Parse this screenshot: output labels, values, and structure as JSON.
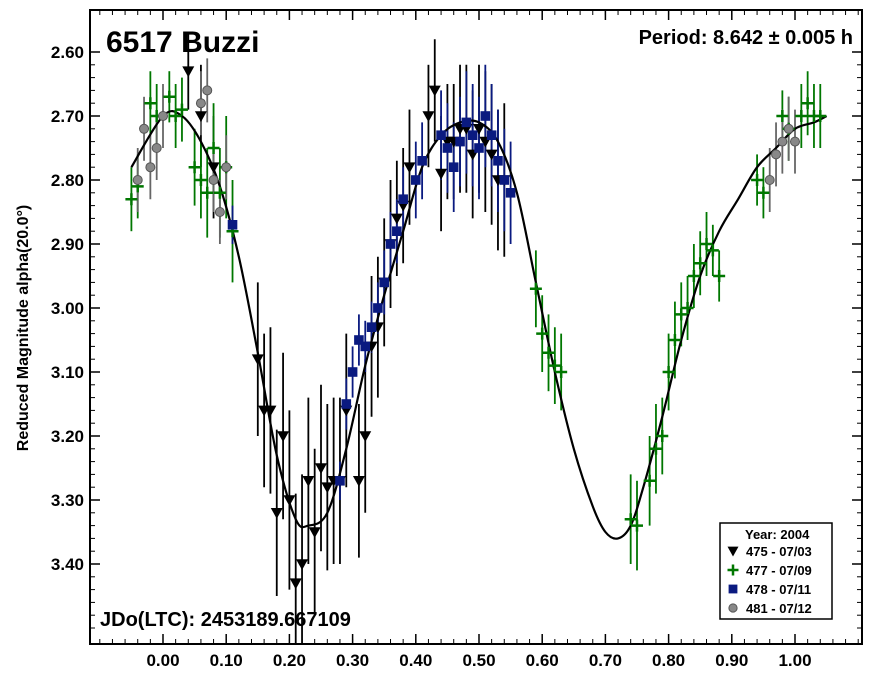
{
  "chart_data": {
    "type": "scatter",
    "title": "6517 Buzzi",
    "period_text": "Period: 8.642 ± 0.005 h",
    "jd_text": "JDo(LTC): 2453189.667109",
    "ylabel": "Reduced Magnitude alpha(20.0°)",
    "xlabel": "",
    "xlim": [
      -0.12,
      1.12
    ],
    "ylim": [
      3.5,
      2.58
    ],
    "y_inverted": true,
    "grid": false,
    "x_ticks": [
      "0.00",
      "0.10",
      "0.20",
      "0.30",
      "0.40",
      "0.50",
      "0.60",
      "0.70",
      "0.80",
      "0.90",
      "1.00"
    ],
    "y_ticks": [
      "2.60",
      "2.70",
      "2.80",
      "2.90",
      "3.00",
      "3.10",
      "3.20",
      "3.30",
      "3.40"
    ],
    "legend": {
      "title": "Year: 2004",
      "placement": "bottom-right",
      "entries": [
        {
          "label": "475 - 07/03",
          "marker": "triangle-down",
          "color": "#000000"
        },
        {
          "label": "477 - 07/09",
          "marker": "plus",
          "color": "#007700"
        },
        {
          "label": "478 - 07/11",
          "marker": "square",
          "color": "#0a1a80"
        },
        {
          "label": "481 - 07/12",
          "marker": "circle",
          "color": "#888888"
        }
      ]
    },
    "fit_curve": {
      "x": [
        -0.05,
        0.0,
        0.03,
        0.06,
        0.09,
        0.12,
        0.15,
        0.18,
        0.21,
        0.23,
        0.26,
        0.29,
        0.32,
        0.35,
        0.38,
        0.41,
        0.44,
        0.47,
        0.5,
        0.53,
        0.56,
        0.59,
        0.62,
        0.65,
        0.68,
        0.7,
        0.72,
        0.74,
        0.76,
        0.79,
        0.82,
        0.85,
        0.88,
        0.91,
        0.94,
        0.97,
        1.0,
        1.03,
        1.05
      ],
      "y": [
        2.78,
        2.7,
        2.7,
        2.74,
        2.81,
        2.92,
        3.07,
        3.23,
        3.33,
        3.34,
        3.32,
        3.22,
        3.09,
        2.98,
        2.88,
        2.78,
        2.73,
        2.71,
        2.71,
        2.74,
        2.82,
        2.96,
        3.1,
        3.22,
        3.31,
        3.35,
        3.36,
        3.34,
        3.28,
        3.17,
        3.05,
        2.95,
        2.88,
        2.83,
        2.78,
        2.75,
        2.72,
        2.71,
        2.7
      ]
    },
    "series": [
      {
        "name": "475 - 07/03",
        "marker": "triangle-down",
        "color": "#000000",
        "x": [
          0.04,
          0.06,
          0.08,
          0.15,
          0.16,
          0.17,
          0.18,
          0.19,
          0.2,
          0.21,
          0.22,
          0.23,
          0.24,
          0.25,
          0.26,
          0.27,
          0.28,
          0.29,
          0.31,
          0.32,
          0.33,
          0.34,
          0.35,
          0.36,
          0.37,
          0.38,
          0.39,
          0.42,
          0.43,
          0.44,
          0.45,
          0.46,
          0.47,
          0.48,
          0.49,
          0.5,
          0.51,
          0.52,
          0.53,
          0.54
        ],
        "y": [
          2.63,
          2.7,
          2.78,
          3.08,
          3.16,
          3.16,
          3.32,
          3.2,
          3.3,
          3.43,
          3.4,
          3.27,
          3.35,
          3.25,
          3.28,
          3.27,
          3.27,
          3.16,
          3.27,
          3.2,
          3.06,
          3.03,
          2.96,
          2.9,
          2.86,
          2.84,
          2.78,
          2.7,
          2.66,
          2.79,
          2.74,
          2.74,
          2.72,
          2.72,
          2.76,
          2.72,
          2.74,
          2.76,
          2.8,
          2.8
        ],
        "err": [
          0.06,
          0.08,
          0.08,
          0.12,
          0.12,
          0.13,
          0.13,
          0.13,
          0.14,
          0.14,
          0.14,
          0.13,
          0.13,
          0.13,
          0.13,
          0.13,
          0.13,
          0.12,
          0.12,
          0.12,
          0.11,
          0.11,
          0.1,
          0.1,
          0.09,
          0.09,
          0.09,
          0.08,
          0.08,
          0.09,
          0.09,
          0.09,
          0.1,
          0.1,
          0.1,
          0.1,
          0.11,
          0.11,
          0.11,
          0.12
        ]
      },
      {
        "name": "477 - 07/09",
        "marker": "plus",
        "color": "#007700",
        "x": [
          -0.05,
          -0.04,
          -0.02,
          -0.01,
          0.01,
          0.02,
          0.03,
          0.05,
          0.06,
          0.07,
          0.08,
          0.09,
          0.1,
          0.11,
          0.59,
          0.6,
          0.61,
          0.62,
          0.63,
          0.74,
          0.75,
          0.77,
          0.78,
          0.79,
          0.8,
          0.81,
          0.82,
          0.83,
          0.84,
          0.85,
          0.86,
          0.87,
          0.88,
          0.94,
          0.95,
          0.98,
          0.99,
          1.01,
          1.02,
          1.03,
          1.04
        ],
        "y": [
          2.83,
          2.81,
          2.68,
          2.7,
          2.67,
          2.7,
          2.69,
          2.78,
          2.8,
          2.82,
          2.75,
          2.82,
          2.78,
          2.88,
          2.97,
          3.04,
          3.07,
          3.09,
          3.1,
          3.33,
          3.34,
          3.27,
          3.22,
          3.2,
          3.1,
          3.05,
          3.01,
          3.0,
          2.95,
          2.93,
          2.9,
          2.91,
          2.95,
          2.8,
          2.82,
          2.7,
          2.72,
          2.7,
          2.68,
          2.7,
          2.7
        ],
        "err": [
          0.05,
          0.05,
          0.05,
          0.05,
          0.04,
          0.05,
          0.05,
          0.06,
          0.06,
          0.07,
          0.07,
          0.07,
          0.08,
          0.08,
          0.06,
          0.06,
          0.06,
          0.06,
          0.06,
          0.07,
          0.07,
          0.07,
          0.07,
          0.06,
          0.06,
          0.06,
          0.05,
          0.05,
          0.05,
          0.05,
          0.05,
          0.04,
          0.04,
          0.04,
          0.04,
          0.04,
          0.05,
          0.05,
          0.05,
          0.05,
          0.05
        ]
      },
      {
        "name": "478 - 07/11",
        "marker": "square",
        "color": "#0a1a80",
        "x": [
          0.11,
          0.28,
          0.29,
          0.3,
          0.31,
          0.32,
          0.33,
          0.34,
          0.35,
          0.36,
          0.37,
          0.38,
          0.4,
          0.41,
          0.44,
          0.45,
          0.46,
          0.47,
          0.48,
          0.49,
          0.5,
          0.51,
          0.52,
          0.53,
          0.54,
          0.55
        ],
        "y": [
          2.87,
          3.27,
          3.15,
          3.1,
          3.05,
          3.06,
          3.03,
          3.0,
          2.96,
          2.9,
          2.88,
          2.83,
          2.8,
          2.77,
          2.73,
          2.75,
          2.78,
          2.74,
          2.71,
          2.73,
          2.75,
          2.7,
          2.73,
          2.77,
          2.8,
          2.82
        ],
        "err": [
          0.03,
          0.03,
          0.04,
          0.04,
          0.04,
          0.04,
          0.04,
          0.04,
          0.05,
          0.05,
          0.05,
          0.05,
          0.06,
          0.06,
          0.07,
          0.07,
          0.07,
          0.07,
          0.08,
          0.08,
          0.08,
          0.08,
          0.08,
          0.08,
          0.08,
          0.08
        ]
      },
      {
        "name": "481 - 07/12",
        "marker": "circle",
        "color": "#888888",
        "x": [
          -0.04,
          -0.03,
          -0.02,
          -0.01,
          0.0,
          0.06,
          0.07,
          0.08,
          0.09,
          0.1,
          0.96,
          0.97,
          0.98,
          0.99,
          1.0
        ],
        "y": [
          2.8,
          2.72,
          2.78,
          2.75,
          2.7,
          2.68,
          2.66,
          2.8,
          2.85,
          2.78,
          2.8,
          2.76,
          2.74,
          2.72,
          2.74
        ],
        "err": [
          0.05,
          0.05,
          0.05,
          0.05,
          0.05,
          0.05,
          0.05,
          0.05,
          0.05,
          0.05,
          0.05,
          0.05,
          0.05,
          0.05,
          0.05
        ]
      }
    ]
  }
}
